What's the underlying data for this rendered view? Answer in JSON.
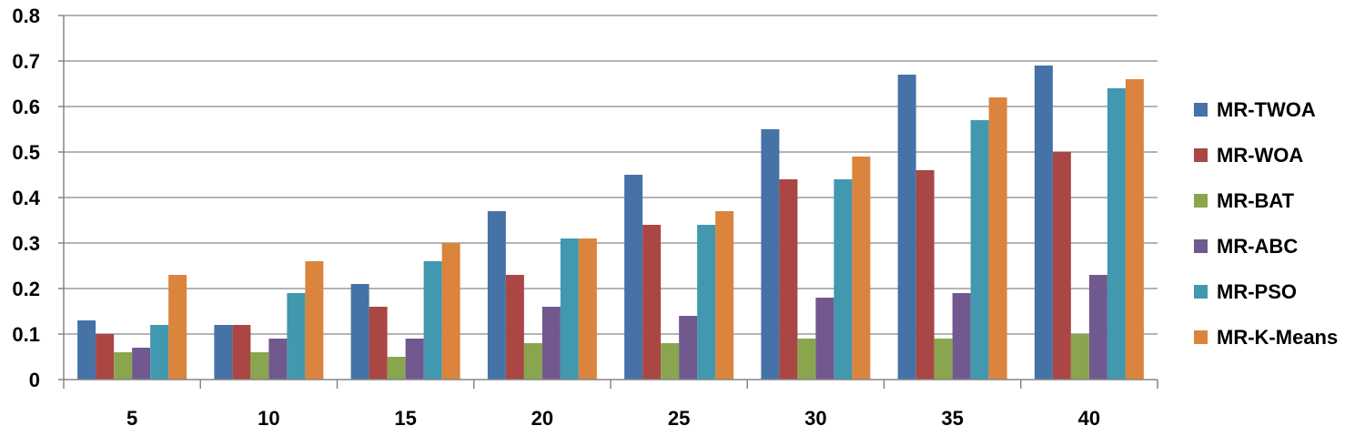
{
  "chart_data": {
    "type": "bar",
    "categories": [
      "5",
      "10",
      "15",
      "20",
      "25",
      "30",
      "35",
      "40"
    ],
    "series": [
      {
        "name": "MR-TWOA",
        "color": "#4572A7",
        "values": [
          0.13,
          0.12,
          0.21,
          0.37,
          0.45,
          0.55,
          0.67,
          0.69
        ]
      },
      {
        "name": "MR-WOA",
        "color": "#AA4643",
        "values": [
          0.1,
          0.12,
          0.16,
          0.23,
          0.34,
          0.44,
          0.46,
          0.5
        ]
      },
      {
        "name": "MR-BAT",
        "color": "#89A54E",
        "values": [
          0.06,
          0.06,
          0.05,
          0.08,
          0.08,
          0.09,
          0.09,
          0.1
        ]
      },
      {
        "name": "MR-ABC",
        "color": "#71588F",
        "values": [
          0.07,
          0.09,
          0.09,
          0.16,
          0.14,
          0.18,
          0.19,
          0.23
        ]
      },
      {
        "name": "MR-PSO",
        "color": "#4198AF",
        "values": [
          0.12,
          0.19,
          0.26,
          0.31,
          0.34,
          0.44,
          0.57,
          0.64
        ]
      },
      {
        "name": "MR-K-Means",
        "color": "#DB843D",
        "values": [
          0.23,
          0.26,
          0.3,
          0.31,
          0.37,
          0.49,
          0.62,
          0.66
        ]
      }
    ],
    "yticks": [
      "0",
      "0.1",
      "0.2",
      "0.3",
      "0.4",
      "0.5",
      "0.6",
      "0.7",
      "0.8"
    ],
    "ylim": [
      0,
      0.8
    ],
    "grid": true,
    "legend": "right"
  }
}
